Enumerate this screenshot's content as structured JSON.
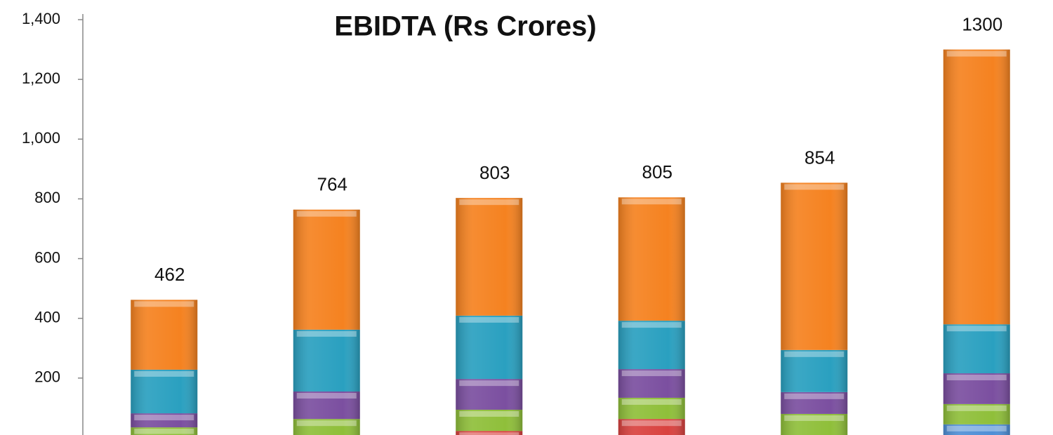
{
  "chart_data": {
    "type": "stacked-bar",
    "title": "EBIDTA (Rs Crores)",
    "series": [
      {
        "color": "#4f8fd6",
        "values": [
          0,
          0,
          0,
          0,
          0,
          45
        ]
      },
      {
        "color": "#d9423f",
        "values": [
          0,
          0,
          23,
          63,
          0,
          0
        ]
      },
      {
        "color": "#8fbf3a",
        "values": [
          35,
          63,
          71,
          71,
          80,
          68
        ]
      },
      {
        "color": "#7b4fa0",
        "values": [
          47,
          92,
          103,
          96,
          73,
          103
        ]
      },
      {
        "color": "#2aa0c0",
        "values": [
          146,
          207,
          212,
          162,
          141,
          164
        ]
      },
      {
        "color": "#f58220",
        "values": [
          234,
          402,
          394,
          413,
          560,
          920
        ]
      }
    ],
    "totals": [
      462,
      764,
      803,
      805,
      854,
      1300
    ],
    "ylim": [
      0,
      1400
    ],
    "yticks": [
      200,
      400,
      600,
      800,
      {
        "value": 1000,
        "label": "1,000"
      },
      {
        "value": 1200,
        "label": "1,200"
      },
      {
        "value": 1400,
        "label": "1,400"
      }
    ]
  }
}
